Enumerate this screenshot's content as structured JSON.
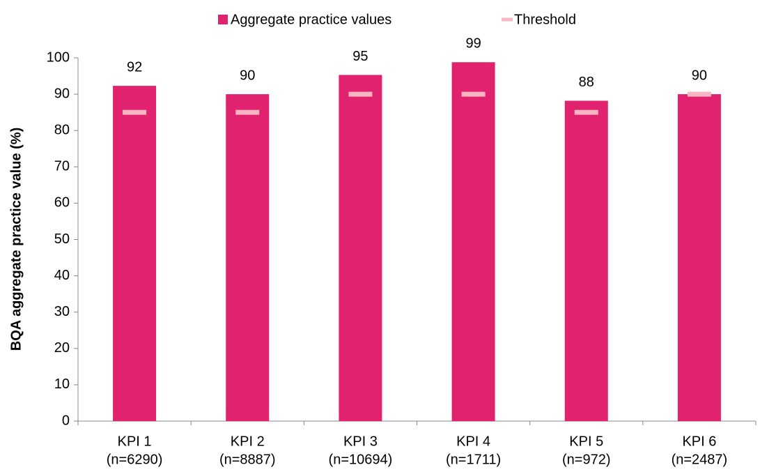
{
  "chart_data": {
    "type": "bar",
    "y_label": "BQA aggregate practice value (%)",
    "categories": [
      [
        "KPI 1",
        "(n=6290)"
      ],
      [
        "KPI 2",
        "(n=8887)"
      ],
      [
        "KPI 3",
        "(n=10694)"
      ],
      [
        "KPI 4",
        "(n=1711)"
      ],
      [
        "KPI 5",
        "(n=972)"
      ],
      [
        "KPI 6",
        "(n=2487)"
      ]
    ],
    "series": [
      {
        "name": "Aggregate practice values",
        "color": "#e0226f",
        "values": [
          92.3,
          90,
          95.3,
          98.8,
          88.2,
          90
        ],
        "value_labels": [
          "92",
          "90",
          "95",
          "99",
          "88",
          "90"
        ]
      },
      {
        "name": "Threshold",
        "color": "#f7b6c2",
        "values": [
          85,
          85,
          90,
          90,
          85,
          90
        ]
      }
    ],
    "ylim": [
      0,
      100
    ],
    "yticks": [
      0,
      10,
      20,
      30,
      40,
      50,
      60,
      70,
      80,
      90,
      100
    ],
    "grid": false,
    "legend": "top"
  }
}
